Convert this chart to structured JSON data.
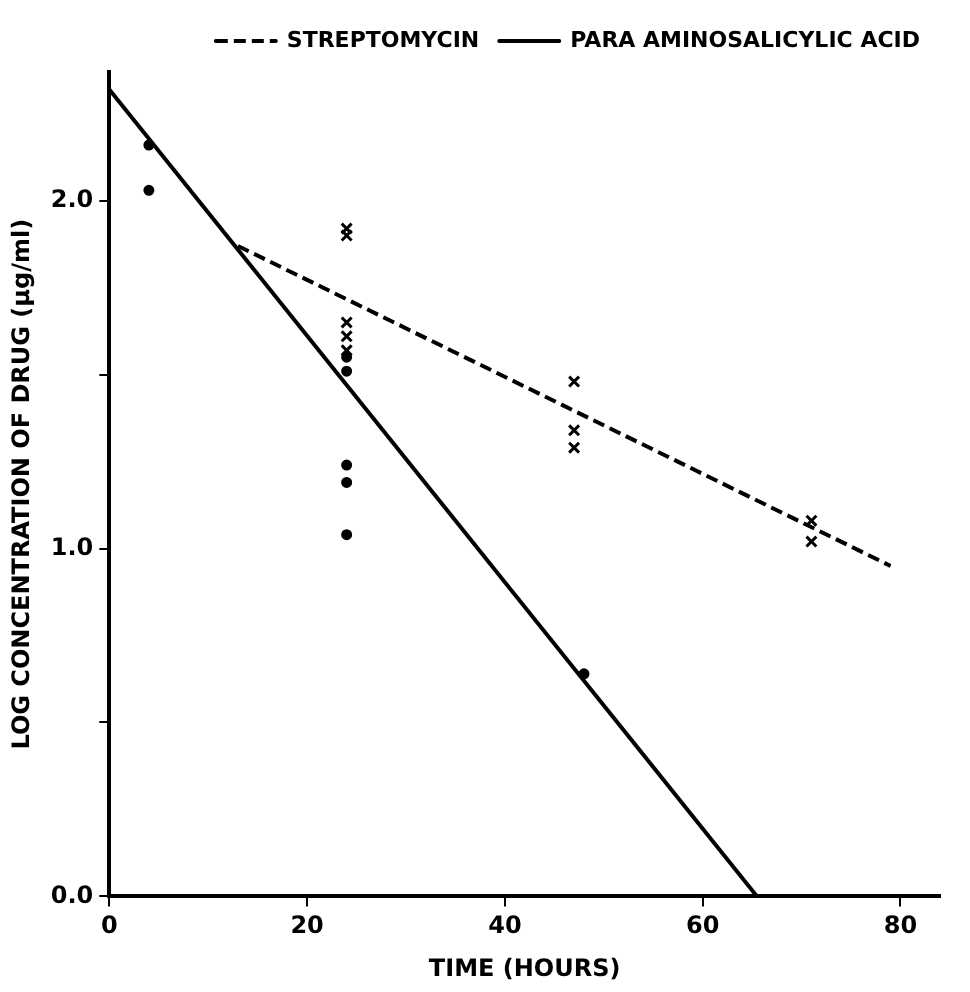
{
  "chart_data": {
    "type": "scatter",
    "xlabel": "TIME (HOURS)",
    "ylabel": "LOG CONCENTRATION OF DRUG (μg/ml)",
    "xlim": [
      0,
      84
    ],
    "ylim": [
      0,
      2.37
    ],
    "xticks": [
      0,
      20,
      40,
      60,
      80
    ],
    "yticks": [
      {
        "value": 0,
        "label": "0.0"
      },
      {
        "value": 0.5,
        "label": null
      },
      {
        "value": 1,
        "label": "1.0"
      },
      {
        "value": 1.5,
        "label": null
      },
      {
        "value": 2,
        "label": "2.0"
      }
    ],
    "grid": false,
    "legend": "top right",
    "series": [
      {
        "type": "scatter",
        "marker": "cross",
        "color": "#000000",
        "x": [
          24,
          24,
          24,
          24,
          24,
          47,
          47,
          47,
          71,
          71
        ],
        "values": [
          1.92,
          1.9,
          1.65,
          1.61,
          1.57,
          1.48,
          1.34,
          1.29,
          1.08,
          1.02
        ]
      },
      {
        "type": "line",
        "name": "STREPTOMYCIN",
        "marker": "none",
        "line_style": "dashed",
        "color": "#000000",
        "x": [
          13,
          79
        ],
        "values": [
          1.87,
          0.95
        ]
      },
      {
        "type": "scatter",
        "marker": "circle",
        "color": "#000000",
        "x": [
          4,
          4,
          24,
          24,
          24,
          24,
          24,
          48
        ],
        "values": [
          2.16,
          2.03,
          1.55,
          1.51,
          1.24,
          1.19,
          1.04,
          0.64
        ]
      },
      {
        "type": "line",
        "name": "PARA AMINOSALICYLIC ACID",
        "marker": "none",
        "line_style": "solid",
        "color": "#000000",
        "x": [
          0,
          65.5
        ],
        "values": [
          2.32,
          0
        ]
      }
    ]
  }
}
